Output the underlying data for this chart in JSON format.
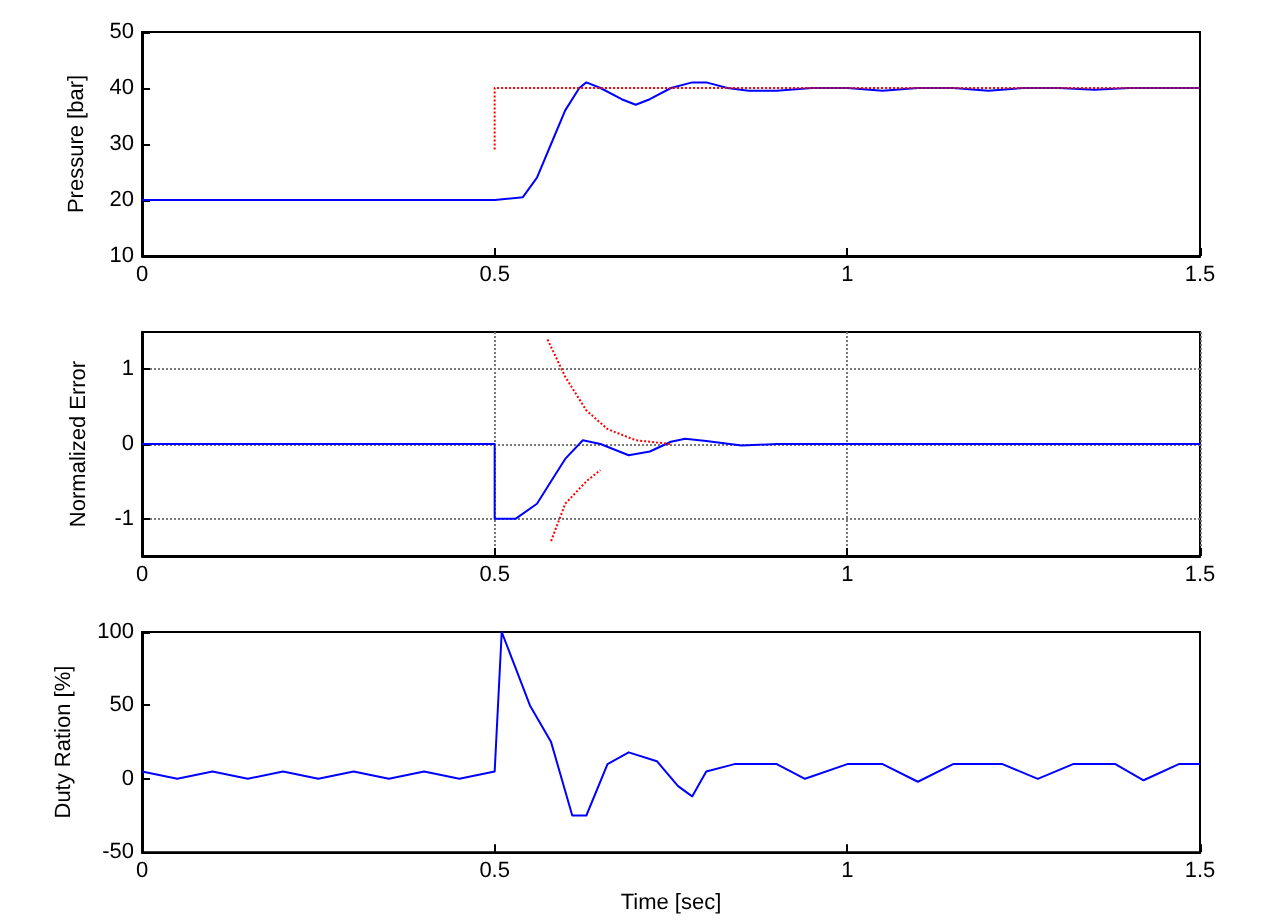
{
  "chart_data": [
    {
      "type": "line",
      "ylabel": "Pressure [bar]",
      "xlim": [
        0,
        1.5
      ],
      "xticks": [
        0,
        0.5,
        1,
        1.5
      ],
      "ylim": [
        10,
        50
      ],
      "yticks": [
        10,
        20,
        30,
        40,
        50
      ],
      "grid": false,
      "series": [
        {
          "color": "#0000ff",
          "line_style": "solid",
          "x": [
            0,
            0.1,
            0.2,
            0.3,
            0.4,
            0.5,
            0.54,
            0.56,
            0.58,
            0.6,
            0.62,
            0.63,
            0.65,
            0.68,
            0.7,
            0.72,
            0.75,
            0.78,
            0.8,
            0.83,
            0.86,
            0.9,
            0.95,
            1.0,
            1.05,
            1.1,
            1.15,
            1.2,
            1.25,
            1.3,
            1.35,
            1.4,
            1.45,
            1.5
          ],
          "values": [
            20,
            20,
            20,
            20,
            20,
            20,
            20.5,
            24,
            30,
            36,
            40,
            41,
            40,
            38,
            37,
            38,
            40,
            41,
            41,
            40,
            39.5,
            39.5,
            40,
            40,
            39.5,
            40,
            40,
            39.5,
            40,
            40,
            39.7,
            40,
            40,
            40
          ]
        },
        {
          "color": "#ff0000",
          "line_style": "dotted",
          "x": [
            0.5,
            0.5,
            1.5
          ],
          "values": [
            29,
            40,
            40
          ]
        }
      ]
    },
    {
      "type": "line",
      "ylabel": "Normalized Error",
      "xlim": [
        0,
        1.5
      ],
      "xticks": [
        0,
        0.5,
        1,
        1.5
      ],
      "ylim": [
        -1.5,
        1.5
      ],
      "yticks": [
        -1,
        0,
        1
      ],
      "grid": true,
      "series": [
        {
          "color": "#0000ff",
          "line_style": "solid",
          "x": [
            0,
            0.1,
            0.2,
            0.3,
            0.4,
            0.5,
            0.5,
            0.53,
            0.56,
            0.58,
            0.6,
            0.625,
            0.65,
            0.69,
            0.72,
            0.75,
            0.77,
            0.8,
            0.85,
            0.9,
            1.0,
            1.1,
            1.2,
            1.3,
            1.4,
            1.5
          ],
          "values": [
            0,
            0,
            0,
            0,
            0,
            0,
            -1,
            -1,
            -0.8,
            -0.5,
            -0.2,
            0.05,
            0,
            -0.15,
            -0.1,
            0.03,
            0.07,
            0.04,
            -0.02,
            0,
            0,
            0,
            0,
            0,
            0,
            0
          ]
        },
        {
          "color": "#ff0000",
          "line_style": "dotted",
          "x": [
            0.575,
            0.6,
            0.63,
            0.66,
            0.7,
            0.75
          ],
          "values": [
            1.4,
            0.9,
            0.45,
            0.2,
            0.05,
            0
          ]
        },
        {
          "color": "#ff0000",
          "line_style": "dotted",
          "x": [
            0.58,
            0.6,
            0.63,
            0.65
          ],
          "values": [
            -1.3,
            -0.8,
            -0.5,
            -0.35
          ]
        }
      ]
    },
    {
      "type": "line",
      "ylabel": "Duty Ration [%]",
      "xlabel": "Time [sec]",
      "xlim": [
        0,
        1.5
      ],
      "xticks": [
        0,
        0.5,
        1,
        1.5
      ],
      "ylim": [
        -50,
        100
      ],
      "yticks": [
        -50,
        0,
        50,
        100
      ],
      "grid": false,
      "series": [
        {
          "color": "#0000ff",
          "line_style": "solid",
          "x": [
            0,
            0.05,
            0.1,
            0.15,
            0.2,
            0.25,
            0.3,
            0.35,
            0.4,
            0.45,
            0.5,
            0.51,
            0.53,
            0.55,
            0.58,
            0.61,
            0.63,
            0.66,
            0.69,
            0.73,
            0.76,
            0.78,
            0.8,
            0.84,
            0.9,
            0.94,
            1.0,
            1.05,
            1.1,
            1.15,
            1.22,
            1.27,
            1.32,
            1.38,
            1.42,
            1.47,
            1.5
          ],
          "values": [
            5,
            0,
            5,
            0,
            5,
            0,
            5,
            0,
            5,
            0,
            5,
            100,
            75,
            50,
            25,
            -25,
            -25,
            10,
            18,
            12,
            -5,
            -12,
            5,
            10,
            10,
            0,
            10,
            10,
            -2,
            10,
            10,
            0,
            10,
            10,
            -1,
            10,
            10
          ]
        }
      ]
    }
  ]
}
